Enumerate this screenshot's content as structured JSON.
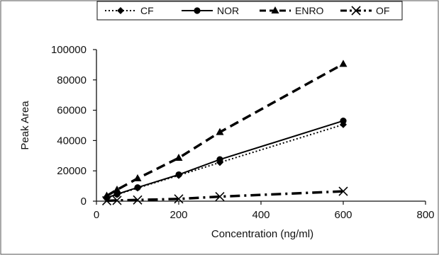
{
  "chart_data": {
    "type": "line",
    "title": "",
    "xlabel": "Concentration (ng/ml)",
    "ylabel": "Peak Area",
    "xlim": [
      0,
      800
    ],
    "ylim": [
      0,
      100000
    ],
    "x_ticks": [
      0,
      200,
      400,
      600,
      800
    ],
    "y_ticks": [
      0,
      20000,
      40000,
      60000,
      80000,
      100000
    ],
    "x_tick_labels": [
      "0",
      "200",
      "400",
      "600",
      "800"
    ],
    "y_tick_labels": [
      "0",
      "20000",
      "40000",
      "60000",
      "80000",
      "100000"
    ],
    "grid": false,
    "legend_position": "top",
    "series": [
      {
        "name": "CF",
        "marker": "diamond",
        "line_style": "dotted",
        "color": "#000000",
        "x": [
          25,
          50,
          100,
          200,
          300,
          600
        ],
        "y": [
          2200,
          4400,
          8700,
          17000,
          25500,
          50500
        ]
      },
      {
        "name": "NOR",
        "marker": "circle",
        "line_style": "solid",
        "color": "#000000",
        "x": [
          25,
          50,
          100,
          200,
          300,
          600
        ],
        "y": [
          2300,
          4600,
          9000,
          17500,
          27500,
          53000
        ]
      },
      {
        "name": "ENRO",
        "marker": "triangle",
        "line_style": "dashed",
        "color": "#000000",
        "x": [
          25,
          50,
          100,
          200,
          300,
          600
        ],
        "y": [
          3500,
          7500,
          15000,
          28500,
          45500,
          90500
        ]
      },
      {
        "name": "OF",
        "marker": "x",
        "line_style": "dashdot",
        "color": "#000000",
        "x": [
          25,
          50,
          100,
          200,
          300,
          600
        ],
        "y": [
          250,
          500,
          800,
          1500,
          3000,
          6500
        ]
      }
    ]
  }
}
